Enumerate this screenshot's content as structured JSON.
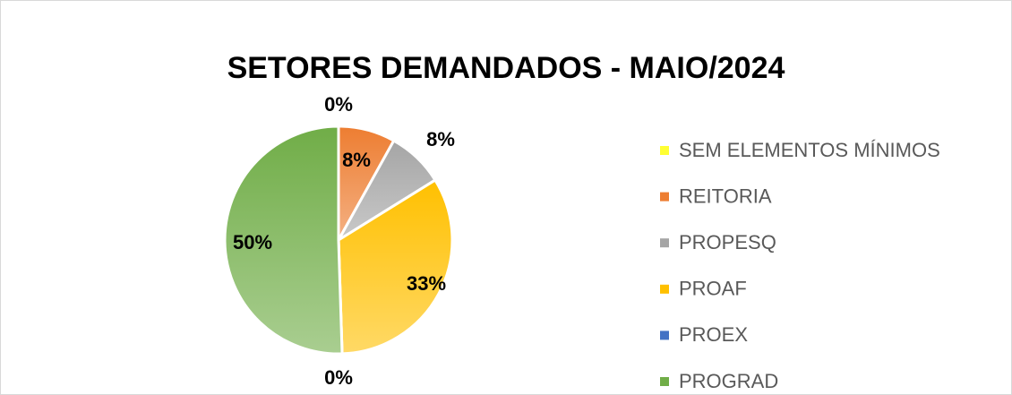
{
  "chart_data": {
    "type": "pie",
    "title": "SETORES DEMANDADOS - MAIO/2024",
    "categories": [
      "SEM ELEMENTOS MÍNIMOS",
      "REITORIA",
      "PROPESQ",
      "PROAF",
      "PROEX",
      "PROGRAD"
    ],
    "values": [
      0,
      8,
      8,
      33,
      0,
      50
    ],
    "value_labels": [
      "0%",
      "8%",
      "8%",
      "33%",
      "0%",
      "50%"
    ],
    "colors": [
      "#FFFF33",
      "#ED7D31",
      "#A5A5A5",
      "#FFC000",
      "#4472C4",
      "#70AD47"
    ],
    "legend": "right"
  }
}
